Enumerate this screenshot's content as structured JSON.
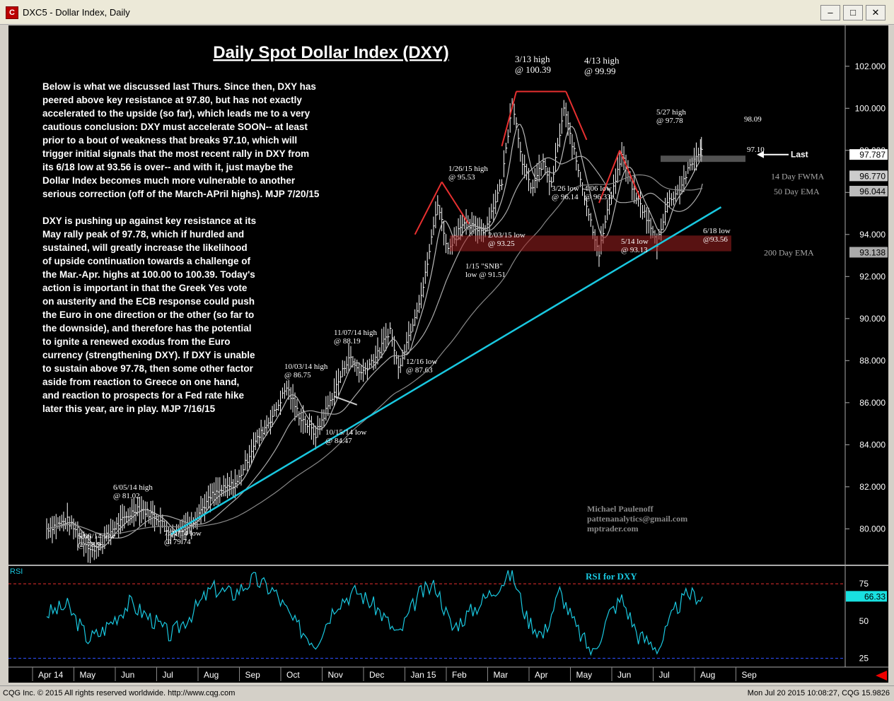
{
  "window": {
    "title": "DXC5 - Dollar Index, Daily",
    "controls": [
      "–",
      "□",
      "✕"
    ]
  },
  "status": {
    "left": "CQG Inc. © 2015 All rights reserved worldwide. http://www.cqg.com",
    "right": "Mon Jul 20 2015 10:08:27, CQG 15.9826"
  },
  "text": {
    "title": "Daily Spot Dollar Index (DXY)",
    "para1": [
      "Below is what we discussed last Thurs. Since then, DXY has",
      "peered above key resistance at 97.80, but has not exactly",
      "accelerated to the upside (so far), which leads me to a very",
      "cautious conclusion: DXY must accelerate SOON-- at least",
      "prior to a bout of weakness that breaks 97.10, which will",
      "trigger initial signals that the most recent rally in DXY from",
      "its 6/18 low at 93.56 is over-- and with it, just maybe the",
      "Dollar Index becomes much more vulnerable to another",
      "serious correction (off of the March-APril highs).  MJP 7/20/15"
    ],
    "para2": [
      "DXY is pushing up against key resistance at its",
      "May rally peak of 97.78, which if hurdled and",
      "sustained, will greatly increase the likelihood",
      "of upside continuation towards a challenge of",
      "the Mar.-Apr. highs at 100.00 to 100.39. Today's",
      "action is important in that the Greek Yes vote",
      "on austerity and the ECB response could push",
      "the Euro in one direction or the other (so far to",
      "the downside), and therefore has the potential",
      "to ignite a renewed exodus from the Euro",
      "currency (strengthening DXY). If DXY is unable",
      "to sustain above 97.78, then some other factor",
      "aside from reaction to Greece on one hand,",
      "and reaction to prospects for a Fed rate hike",
      "later this year, are in play. MJP 7/16/15"
    ],
    "credit": [
      "Michael Paulenoff",
      "pattenanalytics@gmail.com",
      "mptrader.com"
    ]
  },
  "chart_data": [
    {
      "type": "line",
      "title": "Daily Spot Dollar Index (DXY)",
      "series_label": "DXC5 - Dollar Index, Daily",
      "ylim": [
        78.5,
        103
      ],
      "y_ticks": [
        80,
        82,
        84,
        86,
        88,
        90,
        92,
        94,
        96,
        98,
        100,
        102
      ],
      "y_tick_labels": [
        "80.000",
        "82.000",
        "84.000",
        "86.000",
        "88.000",
        "90.000",
        "92.000",
        "94.000",
        "96.000",
        "98.000",
        "100.000",
        "102.000"
      ],
      "x_labels": [
        "Apr 14",
        "May",
        "Jun",
        "Jul",
        "Aug",
        "Sep",
        "Oct",
        "Nov",
        "Dec",
        "Jan 15",
        "Feb",
        "Mar",
        "Apr",
        "May",
        "Jun",
        "Jul",
        "Aug",
        "Sep"
      ],
      "x_label_pos": [
        0,
        1,
        2,
        3,
        4,
        5,
        6,
        7,
        8,
        9,
        10,
        11,
        12,
        13,
        14,
        15,
        16,
        17
      ],
      "price_path": [
        {
          "t": 0,
          "v": 80.0
        },
        {
          "t": 0.5,
          "v": 80.4
        },
        {
          "t": 0.9,
          "v": 79.4
        },
        {
          "t": 1.15,
          "v": 78.91
        },
        {
          "t": 1.6,
          "v": 80.0
        },
        {
          "t": 2.2,
          "v": 81.02
        },
        {
          "t": 2.7,
          "v": 80.5
        },
        {
          "t": 3.0,
          "v": 79.74
        },
        {
          "t": 3.5,
          "v": 80.3
        },
        {
          "t": 4.0,
          "v": 81.6
        },
        {
          "t": 4.6,
          "v": 82.2
        },
        {
          "t": 5.0,
          "v": 84.0
        },
        {
          "t": 5.5,
          "v": 85.5
        },
        {
          "t": 5.8,
          "v": 86.75
        },
        {
          "t": 6.1,
          "v": 85.4
        },
        {
          "t": 6.5,
          "v": 84.47
        },
        {
          "t": 6.9,
          "v": 86.3
        },
        {
          "t": 7.3,
          "v": 88.19
        },
        {
          "t": 7.6,
          "v": 87.4
        },
        {
          "t": 8.0,
          "v": 88.3
        },
        {
          "t": 8.3,
          "v": 89.5
        },
        {
          "t": 8.5,
          "v": 87.63
        },
        {
          "t": 8.8,
          "v": 89.5
        },
        {
          "t": 9.1,
          "v": 91.5
        },
        {
          "t": 9.25,
          "v": 93.2
        },
        {
          "t": 9.45,
          "v": 95.53
        },
        {
          "t": 9.7,
          "v": 93.25
        },
        {
          "t": 10.0,
          "v": 94.5
        },
        {
          "t": 10.6,
          "v": 94.2
        },
        {
          "t": 11.0,
          "v": 96.5
        },
        {
          "t": 11.25,
          "v": 100.39
        },
        {
          "t": 11.5,
          "v": 97.5
        },
        {
          "t": 11.7,
          "v": 96.14
        },
        {
          "t": 12.0,
          "v": 97.4
        },
        {
          "t": 12.2,
          "v": 96.33
        },
        {
          "t": 12.5,
          "v": 99.99
        },
        {
          "t": 12.8,
          "v": 97.5
        },
        {
          "t": 13.1,
          "v": 95.0
        },
        {
          "t": 13.35,
          "v": 93.13
        },
        {
          "t": 13.6,
          "v": 95.5
        },
        {
          "t": 13.9,
          "v": 97.78
        },
        {
          "t": 14.2,
          "v": 96.0
        },
        {
          "t": 14.5,
          "v": 94.8
        },
        {
          "t": 14.75,
          "v": 93.56
        },
        {
          "t": 15.0,
          "v": 95.5
        },
        {
          "t": 15.3,
          "v": 96.2
        },
        {
          "t": 15.55,
          "v": 97.2
        },
        {
          "t": 15.8,
          "v": 98.09
        },
        {
          "t": 15.85,
          "v": 97.787
        }
      ],
      "moving_averages": [
        {
          "name": "14 Day FWMA",
          "value": "96.770"
        },
        {
          "name": "50 Day EMA",
          "value": "96.044"
        },
        {
          "name": "200 Day EMA",
          "value": "93.138"
        }
      ],
      "last": {
        "label": "Last",
        "value": "97.787"
      },
      "annotations": [
        {
          "text": "3/13 high",
          "sub": "@ 100.39"
        },
        {
          "text": "4/13 high",
          "sub": "@ 99.99"
        },
        {
          "text": "5/27 high",
          "sub": "@ 97.78"
        },
        {
          "text": "98.09"
        },
        {
          "text": "97.10"
        },
        {
          "text": "1/26/15 high",
          "sub": "@ 95.53"
        },
        {
          "text": "3/26 low",
          "sub": "@ 96.14"
        },
        {
          "text": "4/06 low",
          "sub": "@ 96.33"
        },
        {
          "text": "2/03/15 low",
          "sub": "@ 93.25"
        },
        {
          "text": "5/14 low",
          "sub": "@ 93.13"
        },
        {
          "text": "6/18 low",
          "sub": "@93.56"
        },
        {
          "text": "1/15 \"SNB\"",
          "sub": "low @ 91.51"
        },
        {
          "text": "11/07/14 high",
          "sub": "@ 88.19"
        },
        {
          "text": "12/16 low",
          "sub": "@ 87.63"
        },
        {
          "text": "10/03/14 high",
          "sub": "@ 86.75"
        },
        {
          "text": "10/15/14 low",
          "sub": "@ 84.47"
        },
        {
          "text": "6/05/14 high",
          "sub": "@ 81.02"
        },
        {
          "text": "5/08/14 low",
          "sub": "@ 78.91"
        },
        {
          "text": "7/01/14 low",
          "sub": "@ 79.74"
        }
      ],
      "colors": {
        "price": "#ffffff",
        "trendline": "#19c8e0",
        "resistance": "#e83030",
        "zone": "#a02020"
      }
    },
    {
      "type": "line",
      "panel_label": "RSI",
      "title": "RSI for DXY",
      "ylim": [
        20,
        85
      ],
      "y_ticks": [
        25,
        50,
        75
      ],
      "y_tick_labels": [
        "25",
        "50",
        "75"
      ],
      "last": "66.33",
      "rsi_path": [
        {
          "t": 0,
          "v": 55
        },
        {
          "t": 0.5,
          "v": 60
        },
        {
          "t": 1.0,
          "v": 38
        },
        {
          "t": 1.3,
          "v": 42
        },
        {
          "t": 2.0,
          "v": 62
        },
        {
          "t": 2.6,
          "v": 50
        },
        {
          "t": 3.0,
          "v": 40
        },
        {
          "t": 3.5,
          "v": 55
        },
        {
          "t": 4.0,
          "v": 72
        },
        {
          "t": 4.5,
          "v": 68
        },
        {
          "t": 5.0,
          "v": 78
        },
        {
          "t": 5.5,
          "v": 70
        },
        {
          "t": 6.0,
          "v": 48
        },
        {
          "t": 6.5,
          "v": 35
        },
        {
          "t": 7.0,
          "v": 62
        },
        {
          "t": 7.5,
          "v": 70
        },
        {
          "t": 8.0,
          "v": 58
        },
        {
          "t": 8.5,
          "v": 40
        },
        {
          "t": 9.0,
          "v": 68
        },
        {
          "t": 9.4,
          "v": 74
        },
        {
          "t": 9.8,
          "v": 45
        },
        {
          "t": 10.4,
          "v": 60
        },
        {
          "t": 11.0,
          "v": 76
        },
        {
          "t": 11.25,
          "v": 82
        },
        {
          "t": 11.6,
          "v": 52
        },
        {
          "t": 12.0,
          "v": 40
        },
        {
          "t": 12.4,
          "v": 70
        },
        {
          "t": 12.8,
          "v": 45
        },
        {
          "t": 13.2,
          "v": 28
        },
        {
          "t": 13.6,
          "v": 55
        },
        {
          "t": 13.9,
          "v": 65
        },
        {
          "t": 14.3,
          "v": 40
        },
        {
          "t": 14.8,
          "v": 32
        },
        {
          "t": 15.2,
          "v": 58
        },
        {
          "t": 15.5,
          "v": 68
        },
        {
          "t": 15.85,
          "v": 66.33
        }
      ],
      "colors": {
        "rsi": "#19c8e0",
        "level": "#e83030"
      }
    }
  ]
}
